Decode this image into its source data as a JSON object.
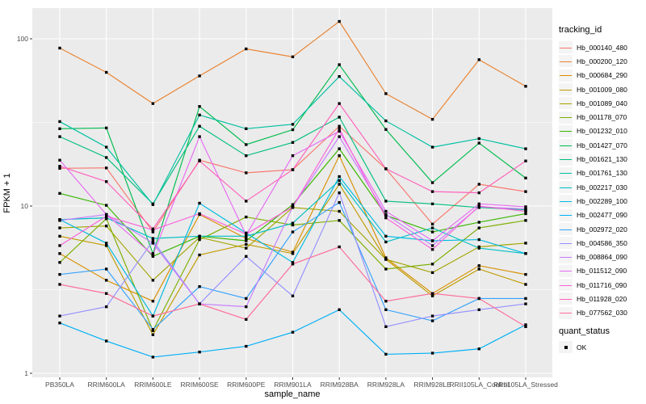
{
  "figure": {
    "y_axis_title": "FPKM + 1",
    "x_axis_title": "sample_name",
    "legend_title": "tracking_id",
    "quant_legend_title": "quant_status",
    "quant_legend_value": "OK"
  },
  "colors": {
    "panel_bg": "#EBEBEB",
    "grid": "#FFFFFF",
    "point": "#000000",
    "tick_text": "#4D4D4D",
    "tick_mark": "#333333"
  },
  "chart_data": {
    "type": "line",
    "title": "",
    "xlabel": "sample_name",
    "ylabel": "FPKM + 1",
    "y_scale": "log10",
    "y_ticks": [
      1,
      10,
      100
    ],
    "y_minor_ticks": [
      3.162,
      31.62
    ],
    "ylim": [
      0.95,
      150
    ],
    "grid": true,
    "legend_position": "right",
    "point_marker": "black-square",
    "categories": [
      "PB350LA",
      "RRIM600LA",
      "RRIM600LE",
      "RRIM600SE",
      "RRIM600PE",
      "RRIM901LA",
      "RRIM928BA",
      "RRIM928LA",
      "RRIM928LE",
      "RRII105LA_Control",
      "RRII105LA_Stressed"
    ],
    "series": [
      {
        "name": "Hb_000140_480",
        "color": "#F8766D",
        "values": [
          16.8,
          16.9,
          7.0,
          18.8,
          15.8,
          16.5,
          30,
          16.7,
          7.8,
          13.5,
          12.2
        ]
      },
      {
        "name": "Hb_000200_120",
        "color": "#EA8331",
        "values": [
          88,
          63,
          41,
          60,
          87,
          78,
          127,
          47,
          33,
          75,
          52
        ]
      },
      {
        "name": "Hb_000684_290",
        "color": "#D89000",
        "values": [
          5.2,
          3.6,
          2.7,
          8.9,
          6.4,
          5.3,
          20,
          4.9,
          3.0,
          4.4,
          3.9
        ]
      },
      {
        "name": "Hb_001009_080",
        "color": "#C09B00",
        "values": [
          6.6,
          5.8,
          1.7,
          5.1,
          5.9,
          5.2,
          13.5,
          4.8,
          2.9,
          4.2,
          3.4
        ]
      },
      {
        "name": "Hb_001089_040",
        "color": "#A3A500",
        "values": [
          7.4,
          7.6,
          3.6,
          6.5,
          5.6,
          9.8,
          9.3,
          4.8,
          4.0,
          5.7,
          6.0
        ]
      },
      {
        "name": "Hb_001178_070",
        "color": "#7CAE00",
        "values": [
          4.6,
          8.4,
          1.8,
          6.3,
          8.6,
          7.7,
          8.2,
          4.2,
          4.5,
          7.4,
          8.2
        ]
      },
      {
        "name": "Hb_001232_010",
        "color": "#39B600",
        "values": [
          11.9,
          10.1,
          5.0,
          6.6,
          6.2,
          10.2,
          22,
          8.8,
          7.0,
          8.0,
          9.0
        ]
      },
      {
        "name": "Hb_001427_070",
        "color": "#00BB4E",
        "values": [
          29,
          29.3,
          5.2,
          39.4,
          23.3,
          28.6,
          70,
          28.7,
          13.8,
          23.8,
          14.7
        ]
      },
      {
        "name": "Hb_001621_130",
        "color": "#00BF7D",
        "values": [
          26,
          19.5,
          10.3,
          30,
          20,
          24,
          34,
          10.7,
          10.3,
          9.8,
          9.5
        ]
      },
      {
        "name": "Hb_001761_130",
        "color": "#00C1A3",
        "values": [
          32,
          22.5,
          10.2,
          35,
          29,
          30.8,
          59.5,
          32.3,
          22.5,
          25.3,
          22
        ]
      },
      {
        "name": "Hb_002217_030",
        "color": "#00BFC4",
        "values": [
          8.3,
          8.5,
          6.4,
          6.6,
          6.6,
          7.9,
          14.2,
          6.1,
          7.4,
          5.6,
          5.2
        ]
      },
      {
        "name": "Hb_002289_100",
        "color": "#00BAE0",
        "values": [
          8.3,
          6.0,
          2.2,
          10.4,
          6.9,
          4.6,
          15,
          6.6,
          6.2,
          6.3,
          5.2
        ]
      },
      {
        "name": "Hb_002477_090",
        "color": "#00B0F6",
        "values": [
          2.0,
          1.56,
          1.25,
          1.34,
          1.45,
          1.76,
          2.4,
          1.3,
          1.32,
          1.4,
          1.95
        ]
      },
      {
        "name": "Hb_002972_020",
        "color": "#35A2FF",
        "values": [
          3.9,
          4.2,
          1.83,
          3.3,
          2.8,
          7.0,
          10.5,
          2.4,
          2.06,
          2.8,
          2.8
        ]
      },
      {
        "name": "Hb_004586_350",
        "color": "#9590FF",
        "values": [
          2.2,
          2.5,
          6.2,
          2.6,
          5.0,
          2.9,
          12,
          1.9,
          2.2,
          2.4,
          2.6
        ]
      },
      {
        "name": "Hb_008864_090",
        "color": "#C77CFF",
        "values": [
          8.2,
          8.9,
          6.0,
          2.6,
          2.5,
          9.9,
          26,
          8.9,
          5.8,
          9.9,
          9.6
        ]
      },
      {
        "name": "Hb_011512_090",
        "color": "#E76BF3",
        "values": [
          18.8,
          8.9,
          5.1,
          26,
          6.7,
          20,
          28,
          9.3,
          6.2,
          10.3,
          9.9
        ]
      },
      {
        "name": "Hb_011716_090",
        "color": "#FA62DB",
        "values": [
          5.8,
          8.7,
          7.2,
          9.0,
          6.8,
          9.9,
          29,
          8.5,
          5.5,
          10.0,
          9.3
        ]
      },
      {
        "name": "Hb_011928_020",
        "color": "#FF62BC",
        "values": [
          17.3,
          14,
          7.3,
          18.6,
          10.7,
          16.5,
          41,
          16.7,
          12.2,
          12.0,
          18.6
        ]
      },
      {
        "name": "Hb_077562_030",
        "color": "#FF6A98",
        "values": [
          3.4,
          3.0,
          2.2,
          2.6,
          2.1,
          4.5,
          5.7,
          2.7,
          3.0,
          2.8,
          1.9
        ]
      }
    ],
    "quant_status": {
      "label": "OK",
      "marker": "black-square"
    }
  }
}
